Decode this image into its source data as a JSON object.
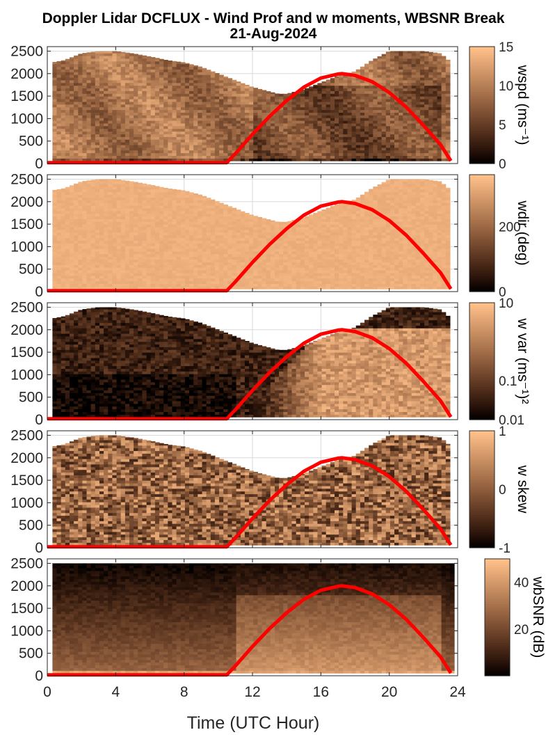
{
  "title": {
    "line1": "Doppler Lidar DCFLUX - Wind Prof and w moments, WBSNR Break",
    "line2": "21-Aug-2024"
  },
  "xlabel": "Time (UTC Hour)",
  "colors": {
    "sun_curve": "#ff0000",
    "colormap_dark": "#000000",
    "colormap_light": "#ffc08a",
    "grid": "#d9d9d9"
  },
  "chart_data": {
    "type": "heatmap",
    "shared_x": {
      "label": "Time (UTC Hour)",
      "xlim": [
        0,
        24
      ],
      "ticks": [
        0,
        4,
        8,
        12,
        16,
        20,
        24
      ],
      "tick_labels": [
        "0",
        "4",
        "8",
        "12",
        "16",
        "20",
        "24"
      ]
    },
    "shared_y": {
      "ylim": [
        0,
        2600
      ],
      "ticks": [
        0,
        500,
        1000,
        1500,
        2000,
        2500
      ],
      "tick_labels": [
        "0",
        "500",
        "1000",
        "1500",
        "2000",
        "2500"
      ]
    },
    "overlay_line": {
      "name": "",
      "color": "#ff0000",
      "x": [
        0,
        10.5,
        11,
        12,
        13,
        14,
        15,
        16,
        17,
        17.25,
        18,
        19,
        20,
        21,
        22,
        23,
        23.6
      ],
      "y": [
        20,
        20,
        220,
        650,
        1050,
        1400,
        1700,
        1900,
        1990,
        2000,
        1960,
        1820,
        1580,
        1250,
        850,
        420,
        60
      ]
    },
    "data_top_profile": {
      "x": [
        0.3,
        1,
        2,
        3,
        4,
        5,
        6,
        7,
        8,
        9,
        10,
        11,
        12,
        13,
        13.5,
        14,
        15,
        16,
        17,
        18,
        19,
        20,
        21,
        22,
        23,
        23.6
      ],
      "y": [
        2250,
        2300,
        2450,
        2500,
        2500,
        2450,
        2380,
        2300,
        2250,
        2150,
        2000,
        1850,
        1700,
        1600,
        1550,
        1550,
        1650,
        1800,
        1950,
        2050,
        2300,
        2500,
        2500,
        2500,
        2450,
        2250
      ]
    },
    "panels": [
      {
        "name": "wspd",
        "colorbar_label": "wspd (ms⁻¹)",
        "colorbar_ticks": [
          "0",
          "5",
          "10",
          "15"
        ],
        "clim": [
          0,
          15
        ]
      },
      {
        "name": "wdir",
        "colorbar_label": "wdir (deg)",
        "colorbar_ticks": [
          "0",
          "200"
        ],
        "clim": [
          0,
          360
        ]
      },
      {
        "name": "w var",
        "colorbar_label": "w var (ms⁻¹)²",
        "colorbar_ticks": [
          "0.01",
          "0.1",
          "10"
        ],
        "scale": "log",
        "clim": [
          0.01,
          10
        ]
      },
      {
        "name": "w skew",
        "colorbar_label": "w skew",
        "colorbar_ticks": [
          "-1",
          "0",
          "1"
        ],
        "clim": [
          -1,
          1
        ]
      },
      {
        "name": "wbSNR",
        "colorbar_label": "wbSNR (dB)",
        "colorbar_ticks": [
          "20",
          "40"
        ],
        "clim": [
          0,
          50
        ]
      }
    ]
  }
}
